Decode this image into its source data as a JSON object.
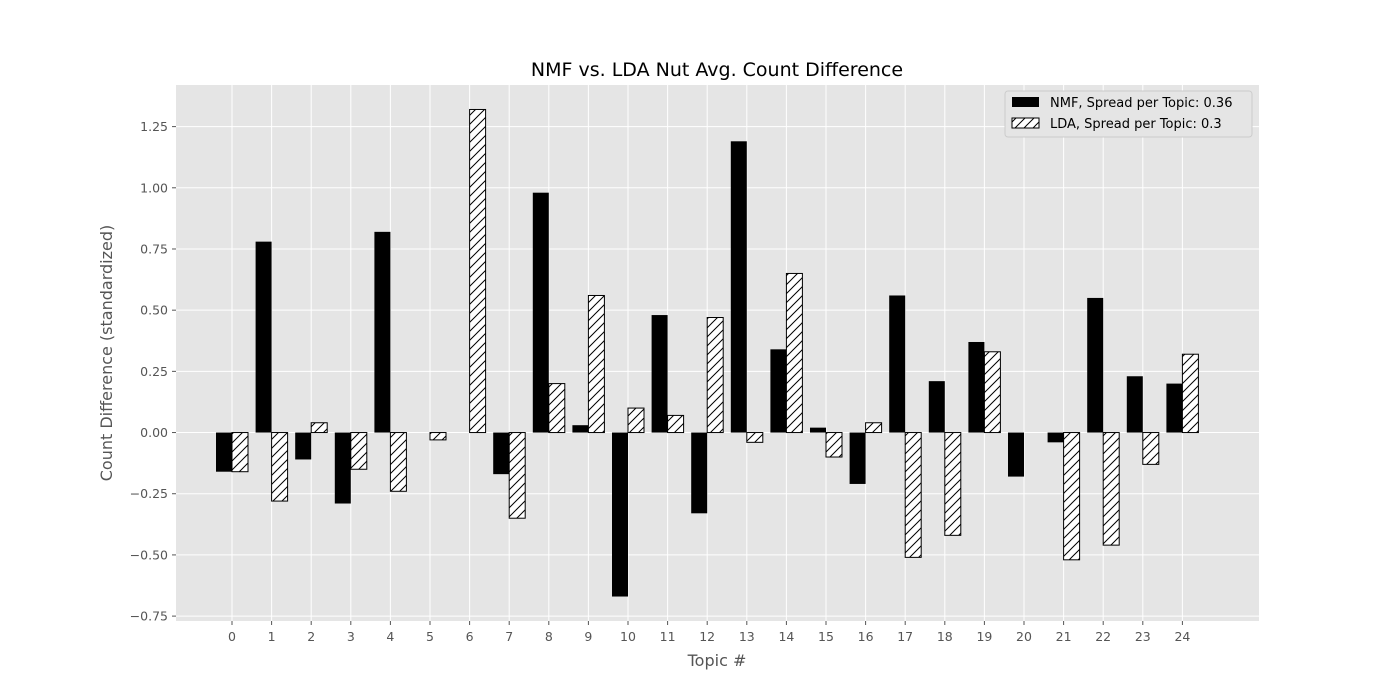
{
  "chart_data": {
    "type": "bar",
    "title": "NMF vs. LDA Nut Avg. Count Difference",
    "xlabel": "Topic #",
    "ylabel": "Count Difference (standardized)",
    "categories": [
      "0",
      "1",
      "2",
      "3",
      "4",
      "5",
      "6",
      "7",
      "8",
      "9",
      "10",
      "11",
      "12",
      "13",
      "14",
      "15",
      "16",
      "17",
      "18",
      "19",
      "20",
      "21",
      "22",
      "23",
      "24"
    ],
    "ylim": [
      -0.77,
      1.42
    ],
    "yticks": [
      "−0.75",
      "−0.50",
      "−0.25",
      "0.00",
      "0.25",
      "0.50",
      "0.75",
      "1.00",
      "1.25"
    ],
    "ytick_values": [
      -0.75,
      -0.5,
      -0.25,
      0.0,
      0.25,
      0.5,
      0.75,
      1.0,
      1.25
    ],
    "grid": true,
    "legend_position": "top-right",
    "series": [
      {
        "name": "NMF, Spread per Topic: 0.36",
        "fill": "solid",
        "color": "#000000",
        "values": [
          -0.16,
          0.78,
          -0.11,
          -0.29,
          0.82,
          0.0,
          0.0,
          -0.17,
          0.98,
          0.03,
          -0.67,
          0.48,
          -0.33,
          1.19,
          0.34,
          0.02,
          -0.21,
          0.56,
          0.21,
          0.37,
          -0.18,
          -0.04,
          0.55,
          0.23,
          0.2
        ]
      },
      {
        "name": "LDA, Spread per Topic: 0.3",
        "fill": "hatched",
        "color": "#ffffff",
        "values": [
          -0.16,
          -0.28,
          0.04,
          -0.15,
          -0.24,
          -0.03,
          1.32,
          -0.35,
          0.2,
          0.56,
          0.1,
          0.07,
          0.47,
          -0.04,
          0.65,
          -0.1,
          0.04,
          -0.51,
          -0.42,
          0.33,
          0.0,
          -0.52,
          -0.46,
          -0.13,
          0.32
        ]
      }
    ]
  }
}
